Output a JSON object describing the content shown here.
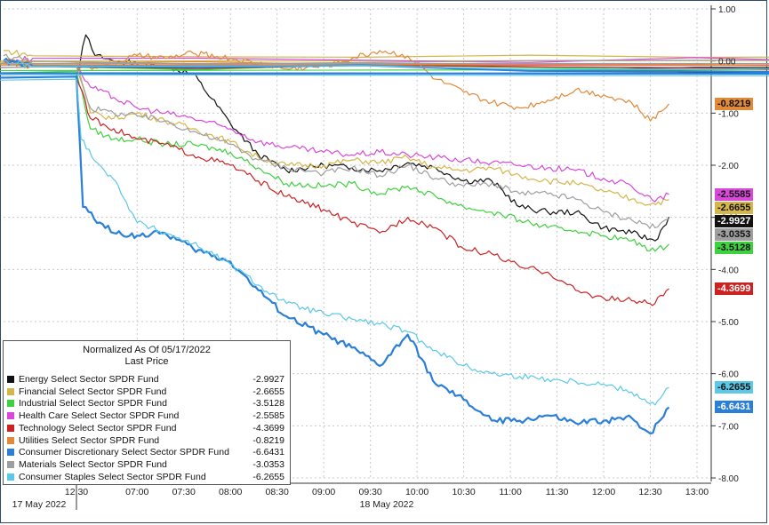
{
  "chart_data": {
    "type": "line",
    "title": "Normalized As Of 05/17/2022",
    "subtitle": "Last Price",
    "y_ticks": [
      "1.00",
      "0.00",
      "-1.00",
      "-2.00",
      "-3.00",
      "-4.00",
      "-5.00",
      "-6.00",
      "-7.00",
      "-8.00"
    ],
    "ylim": [
      -8,
      1
    ],
    "x_ticks": [
      "12:30",
      "07:00",
      "07:30",
      "08:00",
      "08:30",
      "09:00",
      "09:30",
      "10:00",
      "10:30",
      "11:00",
      "11:30",
      "12:00",
      "12:30",
      "13:00"
    ],
    "x_tick_hours": [
      -11.5,
      7,
      7.5,
      8,
      8.5,
      9,
      9.5,
      10,
      10.5,
      11,
      11.5,
      12,
      12.5,
      13
    ],
    "date_labels": [
      "17 May 2022",
      "18 May 2022"
    ],
    "grid": true,
    "legend_position": "bottom-left",
    "series": [
      {
        "name": "Energy Select Sector SPDR Fund",
        "last": "-2.9927",
        "color": "#111111",
        "x": [
          -12.0,
          -11.8,
          6.35,
          6.45,
          6.55,
          6.75,
          7.0,
          7.3,
          7.6,
          8.0,
          8.3,
          8.6,
          9.0,
          9.3,
          9.6,
          9.9,
          10.2,
          10.5,
          10.8,
          11.1,
          11.4,
          11.7,
          12.0,
          12.3,
          12.55,
          12.7
        ],
        "y": [
          0.0,
          -0.1,
          -0.3,
          0.5,
          0.1,
          0.0,
          -0.05,
          -0.1,
          -0.25,
          -1.2,
          -1.8,
          -2.1,
          -2.0,
          -2.05,
          -2.1,
          -1.95,
          -2.05,
          -2.3,
          -2.3,
          -2.8,
          -2.9,
          -2.9,
          -3.2,
          -3.3,
          -3.45,
          -2.9927
        ]
      },
      {
        "name": "Financial Select Sector SPDR Fund",
        "last": "-2.6655",
        "color": "#d4b64a",
        "x": [
          -12.0,
          -11.8,
          6.35,
          6.5,
          6.75,
          7.0,
          7.3,
          7.6,
          8.0,
          8.3,
          8.6,
          9.0,
          9.3,
          9.6,
          9.9,
          10.2,
          10.5,
          10.8,
          11.1,
          11.4,
          11.7,
          12.0,
          12.3,
          12.5,
          12.7
        ],
        "y": [
          0.2,
          0.1,
          0.0,
          -1.0,
          -1.1,
          -1.0,
          -1.15,
          -1.3,
          -1.55,
          -1.85,
          -2.0,
          -2.0,
          -1.9,
          -1.95,
          -1.85,
          -2.05,
          -2.1,
          -2.05,
          -2.2,
          -2.3,
          -2.35,
          -2.5,
          -2.65,
          -2.75,
          -2.6655
        ]
      },
      {
        "name": "Industrial Select Sector SPDR Fund",
        "last": "-3.5128",
        "color": "#3fd13f",
        "x": [
          -12.0,
          -11.8,
          6.35,
          6.5,
          6.75,
          7.0,
          7.3,
          7.6,
          8.0,
          8.3,
          8.6,
          9.0,
          9.3,
          9.6,
          9.9,
          10.2,
          10.5,
          10.8,
          11.1,
          11.4,
          11.7,
          12.0,
          12.3,
          12.55,
          12.7
        ],
        "y": [
          0.0,
          -0.1,
          -0.2,
          -1.3,
          -1.5,
          -1.5,
          -1.6,
          -1.6,
          -1.75,
          -2.05,
          -2.35,
          -2.4,
          -2.35,
          -2.55,
          -2.4,
          -2.6,
          -2.8,
          -2.9,
          -3.05,
          -3.2,
          -3.25,
          -3.35,
          -3.45,
          -3.65,
          -3.5128
        ]
      },
      {
        "name": "Health Care Select Sector SPDR Fund",
        "last": "-2.5585",
        "color": "#d949d9",
        "x": [
          -12.0,
          -11.8,
          6.35,
          6.5,
          6.75,
          7.0,
          7.3,
          7.6,
          8.0,
          8.3,
          8.6,
          9.0,
          9.3,
          9.6,
          9.9,
          10.2,
          10.5,
          10.8,
          11.1,
          11.4,
          11.7,
          12.0,
          12.3,
          12.55,
          12.7
        ],
        "y": [
          0.0,
          0.05,
          -0.1,
          -0.5,
          -0.7,
          -0.9,
          -1.0,
          -1.1,
          -1.3,
          -1.55,
          -1.65,
          -1.75,
          -1.8,
          -1.75,
          -1.8,
          -1.85,
          -1.9,
          -1.95,
          -2.0,
          -2.05,
          -2.1,
          -2.25,
          -2.4,
          -2.7,
          -2.5585
        ]
      },
      {
        "name": "Technology Select Sector SPDR Fund",
        "last": "-4.3699",
        "color": "#cc2222",
        "x": [
          -12.0,
          -11.8,
          6.35,
          6.5,
          6.75,
          7.0,
          7.3,
          7.6,
          8.0,
          8.3,
          8.6,
          9.0,
          9.3,
          9.6,
          9.9,
          10.2,
          10.5,
          10.8,
          11.1,
          11.4,
          11.7,
          12.0,
          12.3,
          12.55,
          12.7
        ],
        "y": [
          0.0,
          -0.1,
          -0.3,
          -1.1,
          -1.3,
          -1.5,
          -1.6,
          -1.8,
          -2.0,
          -2.3,
          -2.6,
          -2.85,
          -3.1,
          -3.3,
          -3.0,
          -3.2,
          -3.6,
          -3.7,
          -3.95,
          -4.05,
          -4.4,
          -4.55,
          -4.6,
          -4.65,
          -4.3699
        ]
      },
      {
        "name": "Utilities Select Sector SPDR Fund",
        "last": "-0.8219",
        "color": "#e08a3a",
        "x": [
          -12.0,
          -11.8,
          6.35,
          6.6,
          7.0,
          7.3,
          7.6,
          8.0,
          8.3,
          8.6,
          9.0,
          9.3,
          9.6,
          9.9,
          10.2,
          10.5,
          10.8,
          11.1,
          11.4,
          11.7,
          12.0,
          12.3,
          12.5,
          12.7
        ],
        "y": [
          0.0,
          -0.05,
          -0.1,
          -0.1,
          0.1,
          0.05,
          0.15,
          0.05,
          -0.05,
          -0.15,
          -0.1,
          0.05,
          0.2,
          0.1,
          -0.35,
          -0.6,
          -0.8,
          -0.9,
          -0.75,
          -0.55,
          -0.65,
          -0.8,
          -1.15,
          -0.8219
        ]
      },
      {
        "name": "Consumer Discretionary Select Sector SPDR Fund",
        "last": "-6.6431",
        "color": "#2a7fd8",
        "x": [
          -12.0,
          -11.8,
          6.35,
          6.42,
          6.6,
          6.75,
          7.0,
          7.3,
          7.6,
          8.0,
          8.3,
          8.6,
          9.0,
          9.3,
          9.6,
          9.9,
          10.2,
          10.5,
          10.8,
          11.1,
          11.4,
          11.7,
          12.0,
          12.3,
          12.5,
          12.7
        ],
        "y": [
          0.0,
          -0.1,
          -0.3,
          -2.8,
          -3.1,
          -3.3,
          -3.35,
          -3.3,
          -3.6,
          -3.85,
          -4.4,
          -4.9,
          -5.25,
          -5.5,
          -5.85,
          -5.25,
          -6.2,
          -6.5,
          -6.9,
          -6.9,
          -6.8,
          -6.95,
          -6.9,
          -6.85,
          -7.15,
          -6.6431
        ]
      },
      {
        "name": "Materials Select Sector SPDR Fund",
        "last": "-3.0353",
        "color": "#9e9e9e",
        "x": [
          -12.0,
          -11.8,
          6.35,
          6.5,
          6.75,
          7.0,
          7.3,
          7.6,
          8.0,
          8.3,
          8.6,
          9.0,
          9.3,
          9.6,
          9.9,
          10.2,
          10.5,
          10.8,
          11.1,
          11.4,
          11.7,
          12.0,
          12.3,
          12.55,
          12.7
        ],
        "y": [
          0.1,
          0.0,
          -0.1,
          -0.9,
          -1.0,
          -1.05,
          -1.15,
          -1.35,
          -1.6,
          -1.9,
          -2.05,
          -2.15,
          -2.05,
          -2.2,
          -2.0,
          -2.25,
          -2.4,
          -2.35,
          -2.55,
          -2.55,
          -2.65,
          -2.9,
          -3.05,
          -3.2,
          -3.0353
        ]
      },
      {
        "name": "Consumer Staples Select Sector SPDR Fund",
        "last": "-6.2655",
        "color": "#5bc8e8",
        "x": [
          -12.0,
          -11.8,
          6.35,
          6.4,
          6.6,
          6.8,
          7.0,
          7.3,
          7.6,
          8.0,
          8.3,
          8.6,
          9.0,
          9.3,
          9.6,
          9.9,
          10.2,
          10.5,
          10.8,
          11.1,
          11.4,
          11.7,
          12.0,
          12.3,
          12.55,
          12.7
        ],
        "y": [
          0.0,
          -0.1,
          -0.35,
          -1.5,
          -2.0,
          -2.4,
          -3.1,
          -3.3,
          -3.5,
          -3.9,
          -4.3,
          -4.65,
          -4.85,
          -4.95,
          -5.05,
          -5.2,
          -5.55,
          -5.85,
          -6.0,
          -6.05,
          -6.1,
          -6.15,
          -6.2,
          -6.35,
          -6.6,
          -6.2655
        ]
      }
    ]
  }
}
